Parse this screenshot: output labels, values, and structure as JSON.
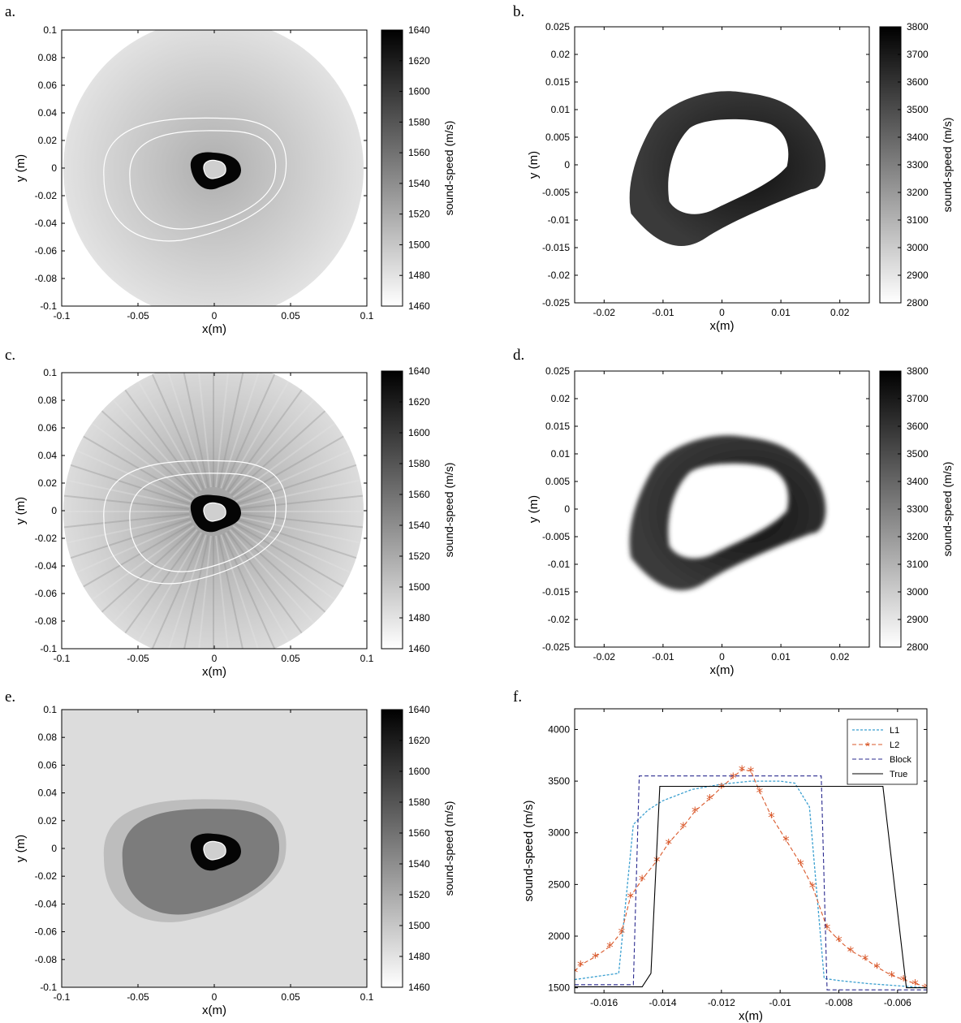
{
  "panel_labels": [
    "a.",
    "b.",
    "c.",
    "d.",
    "e.",
    "f."
  ],
  "colors": {
    "L1": "#3a9fd0",
    "L2": "#d9582a",
    "Block": "#2b2b8f",
    "True": "#000000"
  },
  "chart_data": [
    {
      "panel": "a.",
      "type": "heatmap",
      "xlabel": "x(m)",
      "ylabel": "y (m)",
      "colorbar_label": "sound-speed (m/s)",
      "xlim": [
        -0.1,
        0.1
      ],
      "ylim": [
        -0.1,
        0.1
      ],
      "clim": [
        1460,
        1640
      ],
      "xticks": [
        "-0.1",
        "-0.05",
        "0",
        "0.05",
        "0.1"
      ],
      "yticks": [
        "0.1",
        "0.08",
        "0.06",
        "0.04",
        "0.02",
        "0",
        "-0.02",
        "-0.04",
        "-0.06",
        "-0.08",
        "-0.1"
      ],
      "colorbar_ticks": [
        "1640",
        "1620",
        "1600",
        "1580",
        "1560",
        "1540",
        "1520",
        "1500",
        "1480",
        "1460"
      ]
    },
    {
      "panel": "b.",
      "type": "heatmap",
      "xlabel": "x(m)",
      "ylabel": "y (m)",
      "colorbar_label": "sound-speed (m/s)",
      "xlim": [
        -0.025,
        0.025
      ],
      "ylim": [
        -0.025,
        0.025
      ],
      "clim": [
        2800,
        3800
      ],
      "xticks": [
        "-0.02",
        "-0.01",
        "0",
        "0.01",
        "0.02"
      ],
      "yticks": [
        "0.025",
        "0.02",
        "0.015",
        "0.01",
        "0.005",
        "0",
        "-0.005",
        "-0.01",
        "-0.015",
        "-0.02",
        "-0.025"
      ],
      "colorbar_ticks": [
        "3800",
        "3700",
        "3600",
        "3500",
        "3400",
        "3300",
        "3200",
        "3100",
        "3000",
        "2900",
        "2800"
      ]
    },
    {
      "panel": "c.",
      "type": "heatmap",
      "xlabel": "x(m)",
      "ylabel": "y (m)",
      "colorbar_label": "sound-speed (m/s)",
      "xlim": [
        -0.1,
        0.1
      ],
      "ylim": [
        -0.1,
        0.1
      ],
      "clim": [
        1460,
        1640
      ],
      "xticks": [
        "-0.1",
        "-0.05",
        "0",
        "0.05",
        "0.1"
      ],
      "yticks": [
        "0.1",
        "0.08",
        "0.06",
        "0.04",
        "0.02",
        "0",
        "-0.02",
        "-0.04",
        "-0.06",
        "-0.08",
        "-0.1"
      ],
      "colorbar_ticks": [
        "1640",
        "1620",
        "1600",
        "1580",
        "1560",
        "1540",
        "1520",
        "1500",
        "1480",
        "1460"
      ]
    },
    {
      "panel": "d.",
      "type": "heatmap",
      "xlabel": "x(m)",
      "ylabel": "y (m)",
      "colorbar_label": "sound-speed (m/s)",
      "xlim": [
        -0.025,
        0.025
      ],
      "ylim": [
        -0.025,
        0.025
      ],
      "clim": [
        2800,
        3800
      ],
      "xticks": [
        "-0.02",
        "-0.01",
        "0",
        "0.01",
        "0.02"
      ],
      "yticks": [
        "0.025",
        "0.02",
        "0.015",
        "0.01",
        "0.005",
        "0",
        "-0.005",
        "-0.01",
        "-0.015",
        "-0.02",
        "-0.025"
      ],
      "colorbar_ticks": [
        "3800",
        "3700",
        "3600",
        "3500",
        "3400",
        "3300",
        "3200",
        "3100",
        "3000",
        "2900",
        "2800"
      ]
    },
    {
      "panel": "e.",
      "type": "heatmap",
      "xlabel": "x(m)",
      "ylabel": "y (m)",
      "colorbar_label": "sound-speed (m/s)",
      "xlim": [
        -0.1,
        0.1
      ],
      "ylim": [
        -0.1,
        0.1
      ],
      "clim": [
        1460,
        1640
      ],
      "xticks": [
        "-0.1",
        "-0.05",
        "0",
        "0.05",
        "0.1"
      ],
      "yticks": [
        "0.1",
        "0.08",
        "0.06",
        "0.04",
        "0.02",
        "0",
        "-0.02",
        "-0.04",
        "-0.06",
        "-0.08",
        "-0.1"
      ],
      "colorbar_ticks": [
        "1640",
        "1620",
        "1600",
        "1580",
        "1560",
        "1540",
        "1520",
        "1500",
        "1480",
        "1460"
      ]
    },
    {
      "panel": "f.",
      "type": "line",
      "xlabel": "x(m)",
      "ylabel": "sound-speed (m/s)",
      "xlim": [
        -0.017,
        -0.005
      ],
      "ylim": [
        1450,
        4200
      ],
      "xticks": [
        "-0.016",
        "-0.014",
        "-0.012",
        "-0.01",
        "-0.008",
        "-0.006"
      ],
      "yticks": [
        "4000",
        "3500",
        "3000",
        "2500",
        "2000",
        "1500"
      ],
      "legend": "top-right",
      "series": [
        {
          "name": "L1",
          "x": [
            -0.017,
            -0.0155,
            -0.015,
            -0.0145,
            -0.014,
            -0.013,
            -0.012,
            -0.011,
            -0.01,
            -0.0095,
            -0.009,
            -0.0085,
            -0.008,
            -0.007,
            -0.006,
            -0.005
          ],
          "y": [
            1580,
            1640,
            3080,
            3220,
            3310,
            3420,
            3470,
            3500,
            3500,
            3480,
            3250,
            1590,
            1570,
            1540,
            1520,
            1500
          ]
        },
        {
          "name": "L2",
          "x": [
            -0.017,
            -0.0168,
            -0.0163,
            -0.0158,
            -0.0154,
            -0.0151,
            -0.0147,
            -0.0142,
            -0.0138,
            -0.0133,
            -0.0129,
            -0.0124,
            -0.012,
            -0.0116,
            -0.0113,
            -0.011,
            -0.0107,
            -0.0103,
            -0.0098,
            -0.0093,
            -0.0089,
            -0.0084,
            -0.008,
            -0.0076,
            -0.0071,
            -0.0067,
            -0.0062,
            -0.0058,
            -0.0054,
            -0.005
          ],
          "y": [
            1660,
            1720,
            1800,
            1900,
            2040,
            2380,
            2550,
            2730,
            2900,
            3060,
            3210,
            3330,
            3440,
            3540,
            3610,
            3600,
            3400,
            3160,
            2930,
            2700,
            2480,
            2080,
            1960,
            1860,
            1780,
            1700,
            1620,
            1580,
            1540,
            1510
          ]
        },
        {
          "name": "Block",
          "x": [
            -0.017,
            -0.015,
            -0.0148,
            -0.0086,
            -0.0084,
            -0.005
          ],
          "y": [
            1530,
            1530,
            3550,
            3550,
            1480,
            1480
          ]
        },
        {
          "name": "True",
          "x": [
            -0.017,
            -0.0147,
            -0.0144,
            -0.0141,
            -0.0065,
            -0.0057,
            -0.005
          ],
          "y": [
            1510,
            1510,
            1640,
            3450,
            3450,
            1500,
            1500
          ]
        }
      ]
    }
  ]
}
